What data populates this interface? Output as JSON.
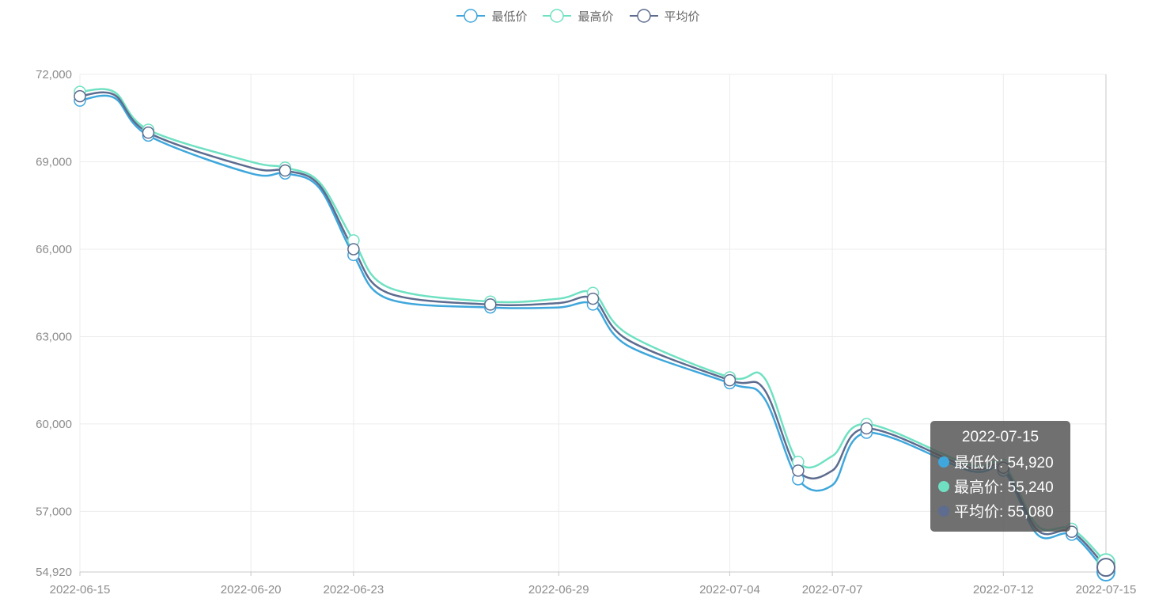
{
  "legend": {
    "items": [
      {
        "name": "最低价",
        "color": "#3fa7dc"
      },
      {
        "name": "最高价",
        "color": "#6fe1c2"
      },
      {
        "name": "平均价",
        "color": "#5d6c8f"
      }
    ]
  },
  "tooltip": {
    "title": "2022-07-15",
    "rows": [
      {
        "label": "最低价: 54,920",
        "color": "#3fa7dc"
      },
      {
        "label": "最高价: 55,240",
        "color": "#6fe1c2"
      },
      {
        "label": "平均价: 55,080",
        "color": "#5d6c8f"
      }
    ]
  },
  "chart_data": {
    "type": "line",
    "smooth": true,
    "title": "",
    "xlabel": "",
    "ylabel": "",
    "ylim": [
      54920,
      72000
    ],
    "y_ticks": [
      "72,000",
      "69,000",
      "66,000",
      "63,000",
      "60,000",
      "57,000",
      "54,920"
    ],
    "x_tick_labels": [
      "2022-06-15",
      "2022-06-20",
      "2022-06-23",
      "2022-06-29",
      "2022-07-04",
      "2022-07-07",
      "2022-07-12",
      "2022-07-15"
    ],
    "x": [
      "2022-06-15",
      "2022-06-16",
      "2022-06-17",
      "2022-06-20",
      "2022-06-21",
      "2022-06-22",
      "2022-06-23",
      "2022-06-24",
      "2022-06-27",
      "2022-06-29",
      "2022-06-30",
      "2022-07-01",
      "2022-07-04",
      "2022-07-05",
      "2022-07-06",
      "2022-07-07",
      "2022-07-08",
      "2022-07-11",
      "2022-07-12",
      "2022-07-13",
      "2022-07-14",
      "2022-07-15"
    ],
    "series": [
      {
        "name": "最低价",
        "color": "#3fa7dc",
        "values": [
          71100,
          71200,
          69900,
          68600,
          68600,
          68100,
          65800,
          64300,
          64000,
          64000,
          64100,
          62700,
          61400,
          60900,
          58100,
          57900,
          59700,
          58400,
          58400,
          56200,
          56200,
          54920
        ]
      },
      {
        "name": "最高价",
        "color": "#6fe1c2",
        "values": [
          71400,
          71400,
          70100,
          69000,
          68800,
          68300,
          66300,
          64700,
          64200,
          64300,
          64500,
          63100,
          61600,
          61600,
          58700,
          58900,
          60000,
          58600,
          58600,
          56500,
          56400,
          55240
        ]
      },
      {
        "name": "平均价",
        "color": "#5d6c8f",
        "values": [
          71250,
          71300,
          70000,
          68800,
          68700,
          68200,
          66000,
          64500,
          64100,
          64150,
          64300,
          62900,
          61500,
          61200,
          58400,
          58400,
          59850,
          58500,
          58500,
          56350,
          56300,
          55080
        ]
      }
    ],
    "highlight_index": 21,
    "grid": true,
    "legend_position": "top-center"
  }
}
